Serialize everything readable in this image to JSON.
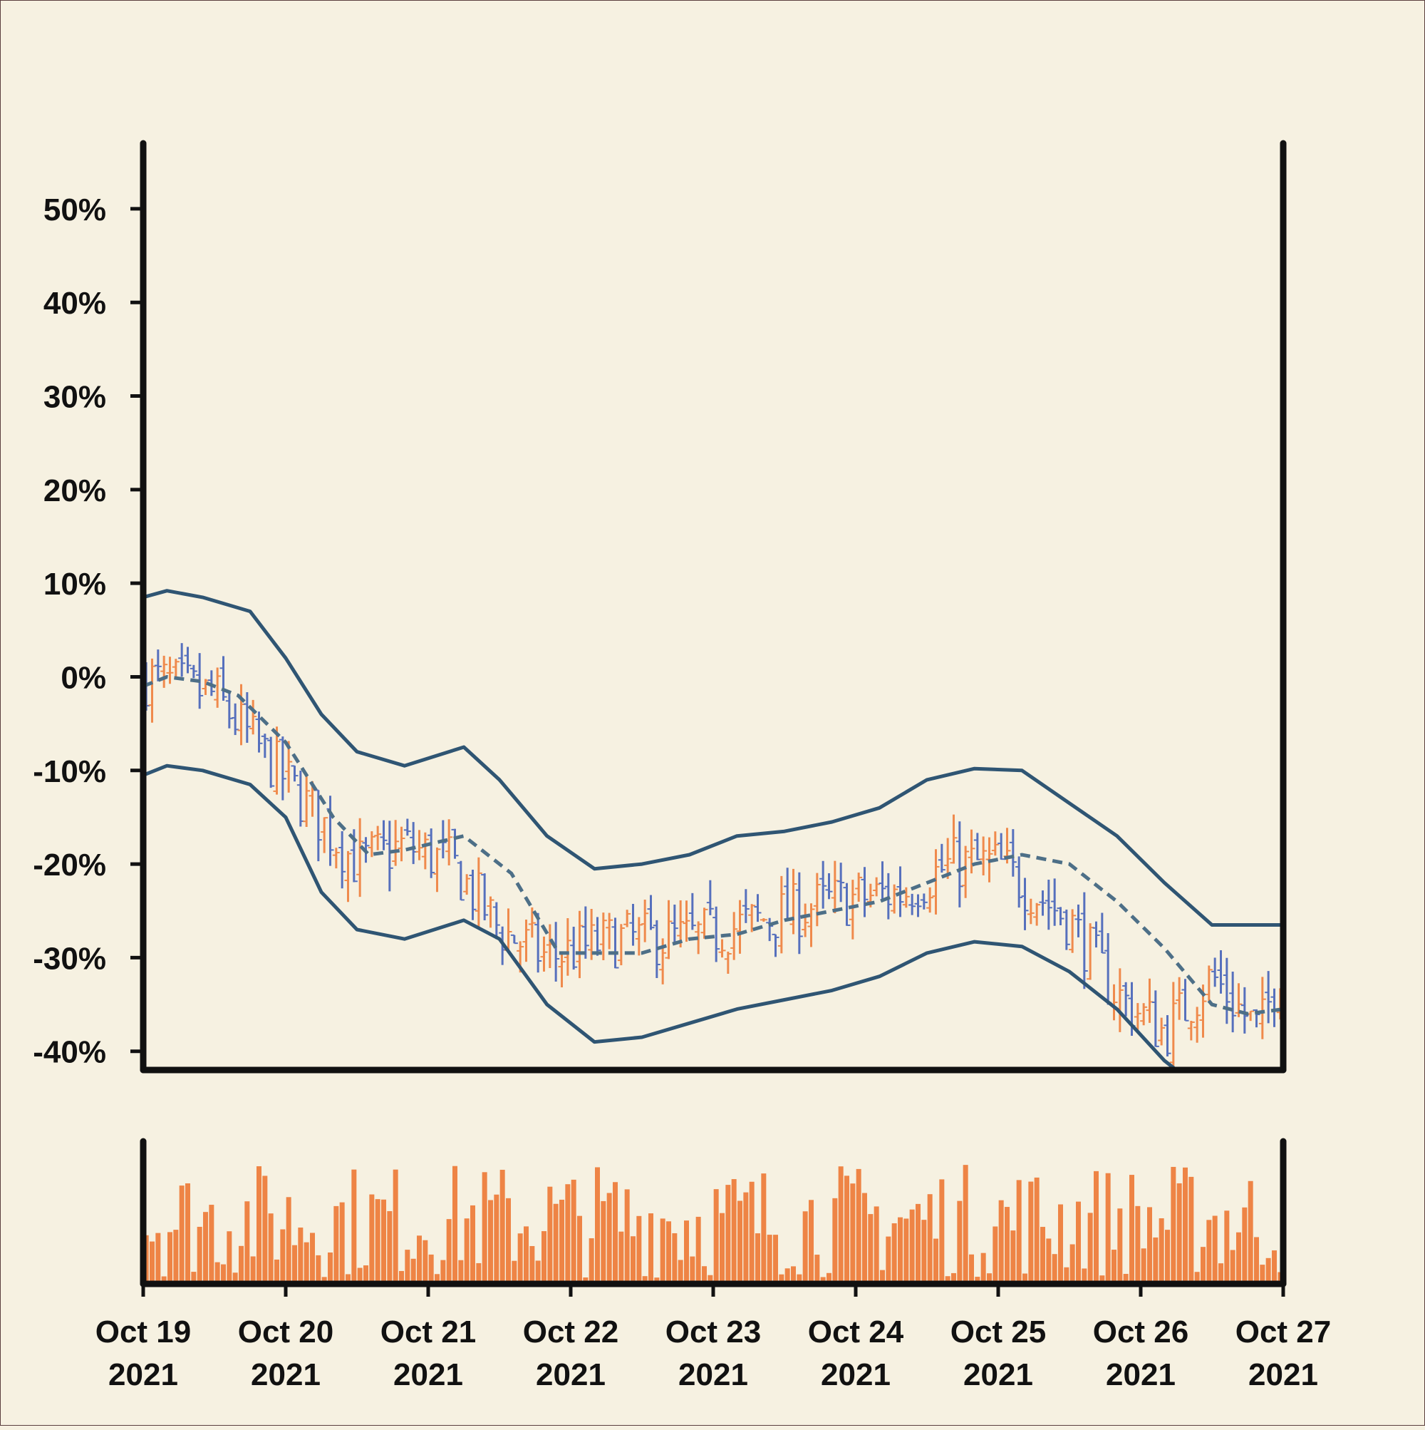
{
  "chart_data": {
    "type": "ohlc",
    "title": "",
    "xlabel": "",
    "ylabel": "",
    "x_range": [
      "2021-10-19T00:00",
      "2021-10-27T00:00"
    ],
    "bar_interval_hours": 1,
    "ylim": [
      -42,
      57
    ],
    "y_unit": "%",
    "yticks": [
      50,
      40,
      30,
      20,
      10,
      0,
      -10,
      -20,
      -30,
      -40
    ],
    "ytick_labels": [
      "50%",
      "40%",
      "30%",
      "20%",
      "10%",
      "0%",
      "-10%",
      "-20%",
      "-30%",
      "-40%"
    ],
    "xtick_labels": [
      {
        "month_day": "Oct 19",
        "year": "2021"
      },
      {
        "month_day": "Oct 20",
        "year": "2021"
      },
      {
        "month_day": "Oct 21",
        "year": "2021"
      },
      {
        "month_day": "Oct 22",
        "year": "2021"
      },
      {
        "month_day": "Oct 23",
        "year": "2021"
      },
      {
        "month_day": "Oct 24",
        "year": "2021"
      },
      {
        "month_day": "Oct 25",
        "year": "2021"
      },
      {
        "month_day": "Oct 26",
        "year": "2021"
      },
      {
        "month_day": "Oct 27",
        "year": "2021"
      }
    ],
    "close_trend": [
      {
        "t": "2021-10-19T00:00",
        "v": 0
      },
      {
        "t": "2021-10-19T12:00",
        "v": -2
      },
      {
        "t": "2021-10-19T20:00",
        "v": -8
      },
      {
        "t": "2021-10-20T04:00",
        "v": -14
      },
      {
        "t": "2021-10-20T12:00",
        "v": -20
      },
      {
        "t": "2021-10-20T20:00",
        "v": -18
      },
      {
        "t": "2021-10-21T04:00",
        "v": -20
      },
      {
        "t": "2021-10-21T12:00",
        "v": -27
      },
      {
        "t": "2021-10-21T20:00",
        "v": -30
      },
      {
        "t": "2021-10-22T08:00",
        "v": -28
      },
      {
        "t": "2021-10-22T20:00",
        "v": -28
      },
      {
        "t": "2021-10-23T08:00",
        "v": -26
      },
      {
        "t": "2021-10-23T20:00",
        "v": -24
      },
      {
        "t": "2021-10-24T08:00",
        "v": -23
      },
      {
        "t": "2021-10-24T16:00",
        "v": -20
      },
      {
        "t": "2021-10-25T00:00",
        "v": -20
      },
      {
        "t": "2021-10-25T12:00",
        "v": -26
      },
      {
        "t": "2021-10-25T20:00",
        "v": -34
      },
      {
        "t": "2021-10-26T04:00",
        "v": -38
      },
      {
        "t": "2021-10-26T12:00",
        "v": -32
      },
      {
        "t": "2021-10-26T20:00",
        "v": -38
      },
      {
        "t": "2021-10-27T00:00",
        "v": -30
      }
    ],
    "moving_average": [
      {
        "t": "2021-10-19T00:00",
        "v": -1
      },
      {
        "t": "2021-10-19T04:00",
        "v": 0
      },
      {
        "t": "2021-10-19T10:00",
        "v": -0.5
      },
      {
        "t": "2021-10-19T16:00",
        "v": -2
      },
      {
        "t": "2021-10-20T00:00",
        "v": -7
      },
      {
        "t": "2021-10-20T08:00",
        "v": -15
      },
      {
        "t": "2021-10-20T14:00",
        "v": -19
      },
      {
        "t": "2021-10-20T20:00",
        "v": -18.5
      },
      {
        "t": "2021-10-21T06:00",
        "v": -17
      },
      {
        "t": "2021-10-21T14:00",
        "v": -21
      },
      {
        "t": "2021-10-21T22:00",
        "v": -29.5
      },
      {
        "t": "2021-10-22T06:00",
        "v": -29.5
      },
      {
        "t": "2021-10-22T12:00",
        "v": -29.5
      },
      {
        "t": "2021-10-22T20:00",
        "v": -28
      },
      {
        "t": "2021-10-23T04:00",
        "v": -27.5
      },
      {
        "t": "2021-10-23T12:00",
        "v": -26
      },
      {
        "t": "2021-10-23T20:00",
        "v": -25
      },
      {
        "t": "2021-10-24T04:00",
        "v": -24
      },
      {
        "t": "2021-10-24T12:00",
        "v": -22
      },
      {
        "t": "2021-10-24T20:00",
        "v": -20
      },
      {
        "t": "2021-10-25T04:00",
        "v": -19
      },
      {
        "t": "2021-10-25T12:00",
        "v": -20
      },
      {
        "t": "2021-10-25T20:00",
        "v": -24
      },
      {
        "t": "2021-10-26T04:00",
        "v": -29
      },
      {
        "t": "2021-10-26T12:00",
        "v": -35
      },
      {
        "t": "2021-10-26T18:00",
        "v": -36
      },
      {
        "t": "2021-10-27T00:00",
        "v": -35.5
      }
    ],
    "upper_band": [
      {
        "t": "2021-10-19T00:00",
        "v": 8.5
      },
      {
        "t": "2021-10-19T04:00",
        "v": 9.2
      },
      {
        "t": "2021-10-19T10:00",
        "v": 8.5
      },
      {
        "t": "2021-10-19T18:00",
        "v": 7
      },
      {
        "t": "2021-10-20T00:00",
        "v": 2
      },
      {
        "t": "2021-10-20T06:00",
        "v": -4
      },
      {
        "t": "2021-10-20T12:00",
        "v": -8
      },
      {
        "t": "2021-10-20T20:00",
        "v": -9.5
      },
      {
        "t": "2021-10-21T06:00",
        "v": -7.5
      },
      {
        "t": "2021-10-21T12:00",
        "v": -11
      },
      {
        "t": "2021-10-21T20:00",
        "v": -17
      },
      {
        "t": "2021-10-22T04:00",
        "v": -20.5
      },
      {
        "t": "2021-10-22T12:00",
        "v": -20
      },
      {
        "t": "2021-10-22T20:00",
        "v": -19
      },
      {
        "t": "2021-10-23T04:00",
        "v": -17
      },
      {
        "t": "2021-10-23T12:00",
        "v": -16.5
      },
      {
        "t": "2021-10-23T20:00",
        "v": -15.5
      },
      {
        "t": "2021-10-24T04:00",
        "v": -14
      },
      {
        "t": "2021-10-24T12:00",
        "v": -11
      },
      {
        "t": "2021-10-24T20:00",
        "v": -9.8
      },
      {
        "t": "2021-10-25T04:00",
        "v": -10
      },
      {
        "t": "2021-10-25T12:00",
        "v": -13.5
      },
      {
        "t": "2021-10-25T20:00",
        "v": -17
      },
      {
        "t": "2021-10-26T04:00",
        "v": -22
      },
      {
        "t": "2021-10-26T12:00",
        "v": -26.5
      },
      {
        "t": "2021-10-26T18:00",
        "v": -26.5
      },
      {
        "t": "2021-10-27T00:00",
        "v": -26.5
      }
    ],
    "lower_band": [
      {
        "t": "2021-10-19T00:00",
        "v": -10.5
      },
      {
        "t": "2021-10-19T04:00",
        "v": -9.5
      },
      {
        "t": "2021-10-19T10:00",
        "v": -10
      },
      {
        "t": "2021-10-19T18:00",
        "v": -11.5
      },
      {
        "t": "2021-10-20T00:00",
        "v": -15
      },
      {
        "t": "2021-10-20T06:00",
        "v": -23
      },
      {
        "t": "2021-10-20T12:00",
        "v": -27
      },
      {
        "t": "2021-10-20T20:00",
        "v": -28
      },
      {
        "t": "2021-10-21T06:00",
        "v": -26
      },
      {
        "t": "2021-10-21T12:00",
        "v": -28
      },
      {
        "t": "2021-10-21T20:00",
        "v": -35
      },
      {
        "t": "2021-10-22T04:00",
        "v": -39
      },
      {
        "t": "2021-10-22T12:00",
        "v": -38.5
      },
      {
        "t": "2021-10-22T20:00",
        "v": -37
      },
      {
        "t": "2021-10-23T04:00",
        "v": -35.5
      },
      {
        "t": "2021-10-23T12:00",
        "v": -34.5
      },
      {
        "t": "2021-10-23T20:00",
        "v": -33.5
      },
      {
        "t": "2021-10-24T04:00",
        "v": -32
      },
      {
        "t": "2021-10-24T12:00",
        "v": -29.5
      },
      {
        "t": "2021-10-24T20:00",
        "v": -28.3
      },
      {
        "t": "2021-10-25T04:00",
        "v": -28.8
      },
      {
        "t": "2021-10-25T12:00",
        "v": -31.5
      },
      {
        "t": "2021-10-25T20:00",
        "v": -35.5
      },
      {
        "t": "2021-10-26T04:00",
        "v": -41
      },
      {
        "t": "2021-10-26T12:00",
        "v": -45
      },
      {
        "t": "2021-10-26T18:00",
        "v": -46
      },
      {
        "t": "2021-10-27T00:00",
        "v": -44
      }
    ],
    "colors": {
      "background": "#f6f1e1",
      "up": "#ef8a4c",
      "down": "#5670bd",
      "bands": "#2f5573",
      "moving_average": "#4d6f87",
      "volume": "#ee8445",
      "axis": "#111111"
    },
    "volume": {
      "ylim": [
        0,
        1
      ],
      "values_approx_range": [
        0.05,
        1.0
      ]
    },
    "grid": false,
    "legend": "none"
  }
}
